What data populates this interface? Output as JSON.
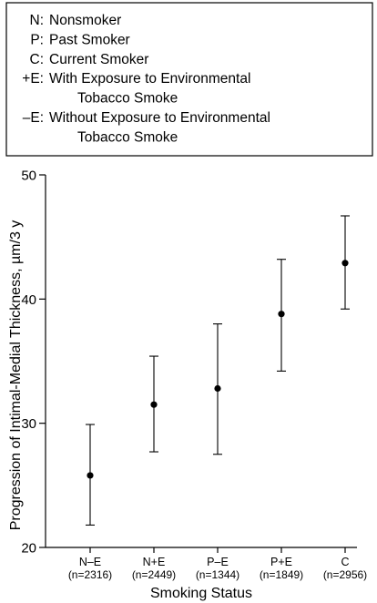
{
  "legend": {
    "entries": [
      {
        "code": "N:",
        "lines": [
          "Nonsmoker"
        ]
      },
      {
        "code": "P:",
        "lines": [
          "Past Smoker"
        ]
      },
      {
        "code": "C:",
        "lines": [
          "Current Smoker"
        ]
      },
      {
        "code": "+E:",
        "lines": [
          "With Exposure to Environmental",
          "Tobacco Smoke"
        ]
      },
      {
        "code": "–E:",
        "lines": [
          "Without Exposure to Environmental",
          "Tobacco Smoke"
        ]
      }
    ]
  },
  "chart_data": {
    "type": "scatter",
    "title": "",
    "xlabel": "Smoking Status",
    "ylabel": "Progression of Intimal-Medial Thickness, µm/3 y",
    "ylim": [
      20,
      50
    ],
    "yticks": [
      20,
      30,
      40,
      50
    ],
    "grid": false,
    "categories": [
      "N–E",
      "N+E",
      "P–E",
      "P+E",
      "C"
    ],
    "n_labels": [
      "(n=2316)",
      "(n=2449)",
      "(n=1344)",
      "(n=1849)",
      "(n=2956)"
    ],
    "series": [
      {
        "values": [
          25.8,
          31.5,
          32.8,
          38.8,
          42.9
        ],
        "lower": [
          21.8,
          27.7,
          27.5,
          34.2,
          39.2
        ],
        "upper": [
          29.9,
          35.4,
          38.0,
          43.2,
          46.7
        ]
      }
    ]
  }
}
